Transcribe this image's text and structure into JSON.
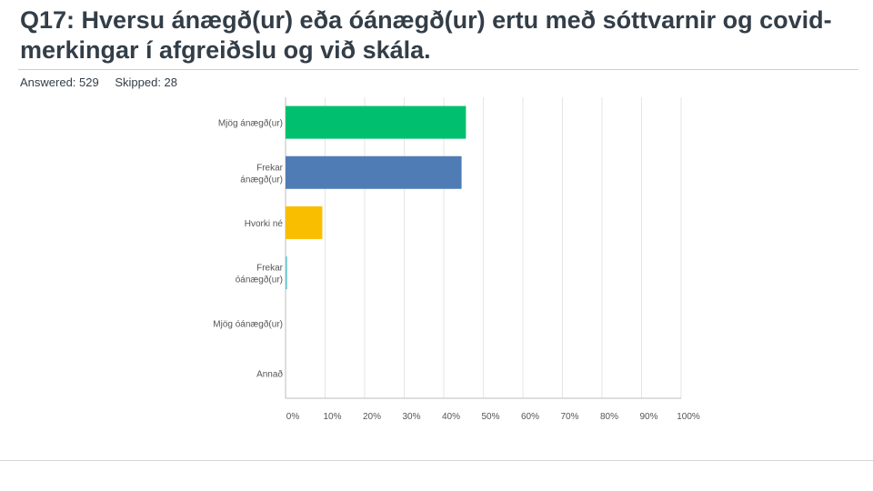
{
  "header": {
    "title": "Q17: Hversu ánægð(ur) eða óánægð(ur) ertu með sóttvarnir og covid-merkingar í afgreiðslu og við skála.",
    "answered": "Answered: 529",
    "skipped": "Skipped: 28"
  },
  "chart_data": {
    "type": "bar",
    "orientation": "horizontal",
    "categories": [
      [
        "Mjög ánægð(ur)"
      ],
      [
        "Frekar",
        "ánægð(ur)"
      ],
      [
        "Hvorki né"
      ],
      [
        "Frekar",
        "óánægð(ur)"
      ],
      [
        "Mjög óánægð(ur)"
      ],
      [
        "Annað"
      ]
    ],
    "values": [
      45.6,
      44.5,
      9.3,
      0.4,
      0.0,
      0.0
    ],
    "colors": [
      "#00bf6f",
      "#507cb6",
      "#f9be00",
      "#6bc8cd",
      "#b2ddf0",
      "#f05b24"
    ],
    "xlim": [
      0,
      100
    ],
    "ticks": [
      "0%",
      "10%",
      "20%",
      "30%",
      "40%",
      "50%",
      "60%",
      "70%",
      "80%",
      "90%",
      "100%"
    ],
    "grid": true
  }
}
